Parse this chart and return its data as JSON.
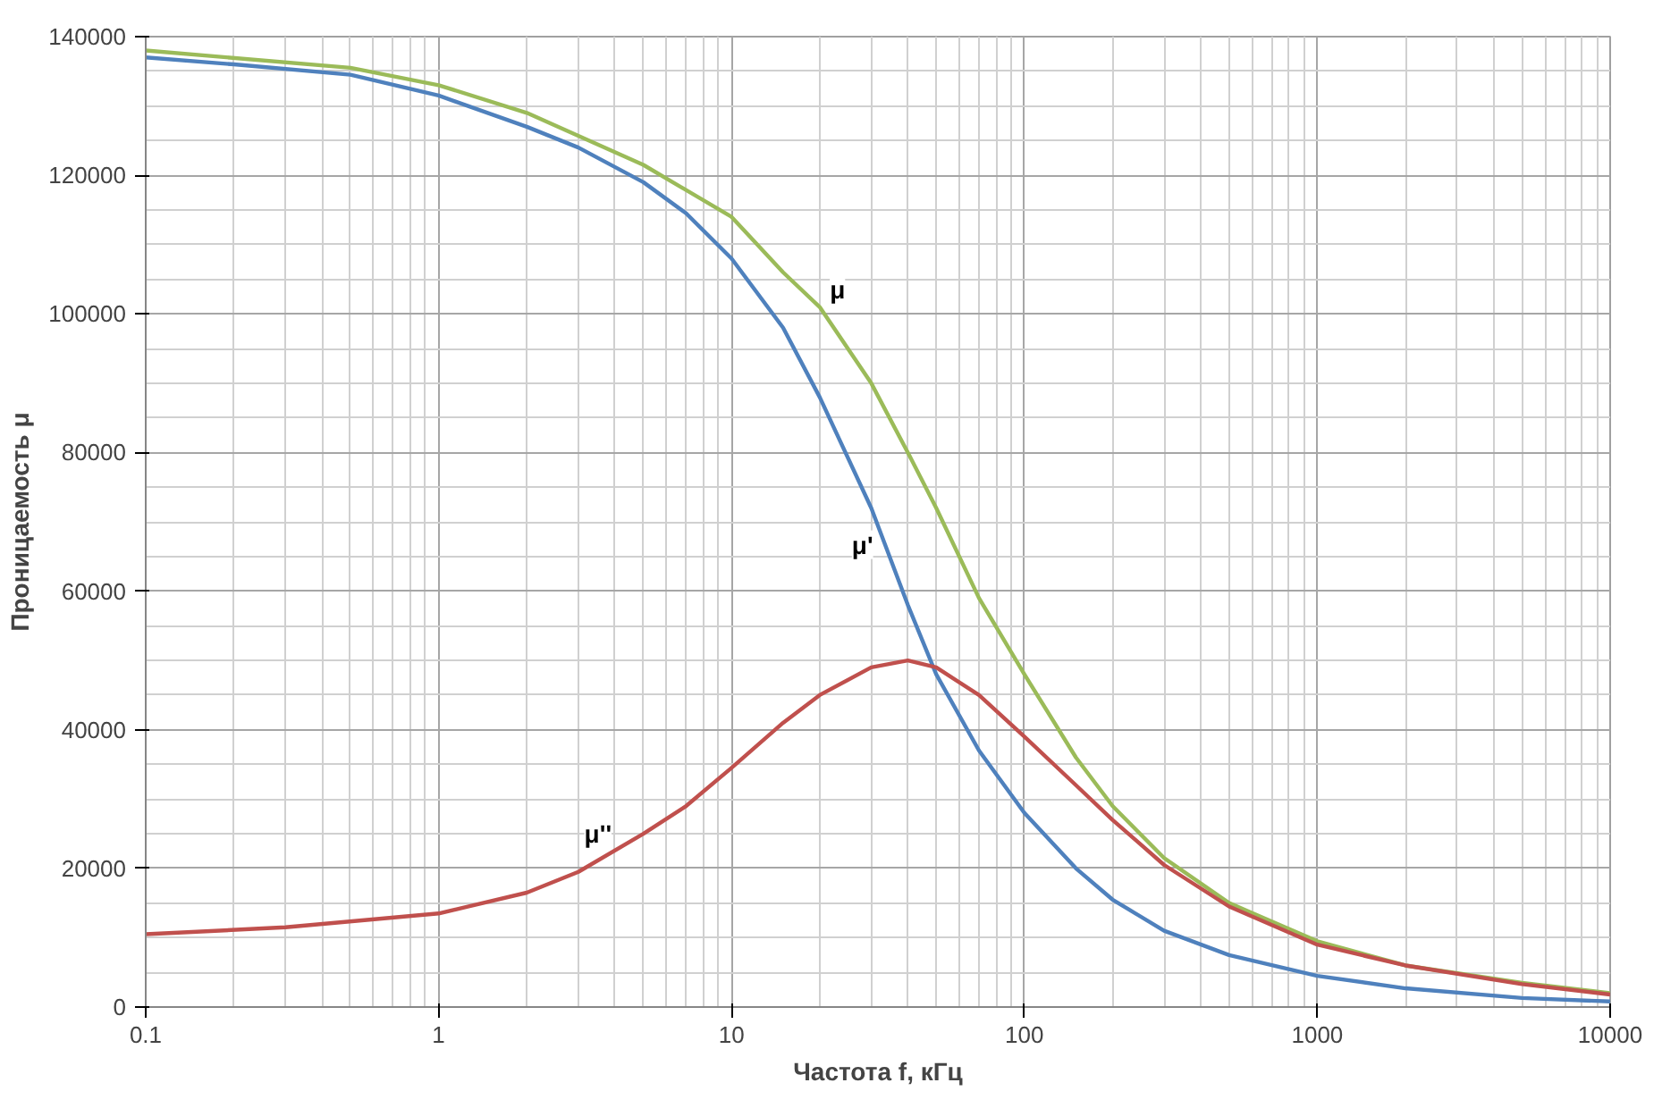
{
  "chart_data": {
    "type": "line",
    "xlabel": "Частота f, кГц",
    "ylabel": "Проницаемость μ",
    "log": "x",
    "xlim": [
      0.1,
      10000
    ],
    "xticks": [
      0.1,
      1,
      10,
      100,
      1000,
      10000
    ],
    "ylim": [
      0,
      140000
    ],
    "yticks": [
      0,
      20000,
      40000,
      60000,
      80000,
      100000,
      120000,
      140000
    ],
    "grid": true,
    "series": [
      {
        "color": "#4f81bd",
        "x": [
          0.1,
          0.2,
          0.5,
          1,
          2,
          3,
          5,
          7,
          10,
          15,
          20,
          30,
          40,
          50,
          70,
          100,
          150,
          200,
          300,
          500,
          1000,
          2000,
          5000,
          10000
        ],
        "values": [
          137000,
          136000,
          134500,
          131500,
          127000,
          124000,
          119000,
          114500,
          108000,
          98000,
          88000,
          72000,
          58000,
          48000,
          37000,
          28000,
          20000,
          15500,
          11000,
          7500,
          4500,
          2700,
          1300,
          800
        ]
      },
      {
        "color": "#9bbb59",
        "x": [
          0.1,
          0.5,
          1,
          2,
          5,
          10,
          15,
          20,
          30,
          40,
          50,
          70,
          100,
          150,
          200,
          300,
          500,
          1000,
          2000,
          5000,
          10000
        ],
        "values": [
          138000,
          135500,
          133000,
          129000,
          121500,
          114000,
          106000,
          101000,
          90000,
          80000,
          72000,
          59000,
          48000,
          36000,
          29000,
          21500,
          15000,
          9500,
          6000,
          3500,
          2000
        ]
      },
      {
        "color": "#c0504d",
        "x": [
          0.1,
          0.3,
          1,
          2,
          3,
          5,
          7,
          10,
          15,
          20,
          30,
          40,
          50,
          70,
          100,
          150,
          200,
          300,
          500,
          1000,
          2000,
          5000,
          10000
        ],
        "values": [
          10500,
          11500,
          13500,
          16500,
          19500,
          25000,
          29000,
          34500,
          41000,
          45000,
          49000,
          50000,
          49000,
          45000,
          39000,
          32000,
          27000,
          20500,
          14500,
          9000,
          6000,
          3300,
          1800
        ]
      }
    ],
    "annotations": [
      {
        "text": "μ",
        "x": 23,
        "y": 103500
      },
      {
        "text": "μ'",
        "x": 28,
        "y": 66700
      },
      {
        "text": "μ''",
        "x": 3.5,
        "y": 25000
      }
    ]
  }
}
